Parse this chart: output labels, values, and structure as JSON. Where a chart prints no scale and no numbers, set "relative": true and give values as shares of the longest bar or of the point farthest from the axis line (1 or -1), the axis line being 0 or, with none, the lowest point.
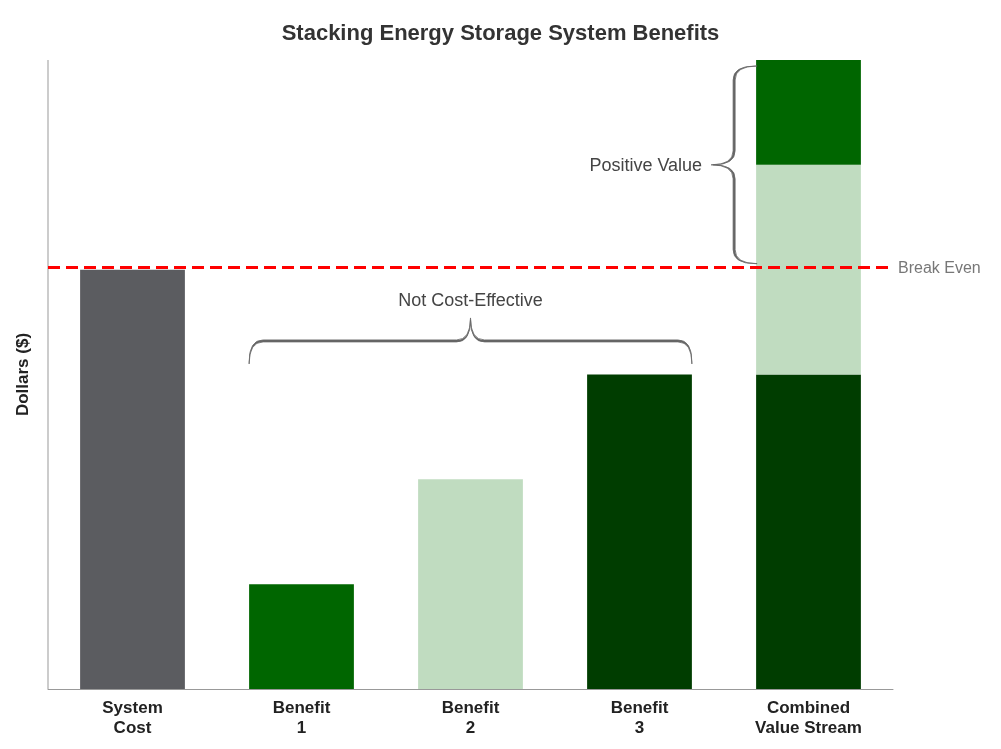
{
  "chart_data": {
    "type": "bar",
    "title": "Stacking Energy Storage System Benefits",
    "ylabel": "Dollars ($)",
    "relative": true,
    "stacked": true,
    "categories": [
      "System\nCost",
      "Benefit\n1",
      "Benefit\n2",
      "Benefit\n3",
      "Combined\nValue Stream"
    ],
    "series": [
      {
        "color": "#5b5c60",
        "values": [
          0.6667,
          null,
          null,
          null,
          null
        ]
      },
      {
        "color": "#003d00",
        "values": [
          null,
          null,
          null,
          0.5,
          0.5
        ]
      },
      {
        "color": "#c0dcc0",
        "values": [
          null,
          null,
          0.3333,
          null,
          0.3333
        ]
      },
      {
        "color": "#006600",
        "values": [
          null,
          0.1667,
          null,
          null,
          0.1667
        ]
      }
    ],
    "ref_lines": [
      {
        "axis": "y",
        "value": 0.6667,
        "label": "Break Even",
        "color": "#ff0000",
        "line_style": "dashed"
      }
    ],
    "annotations": [
      "Not Cost-Effective",
      "Positive Value"
    ]
  }
}
